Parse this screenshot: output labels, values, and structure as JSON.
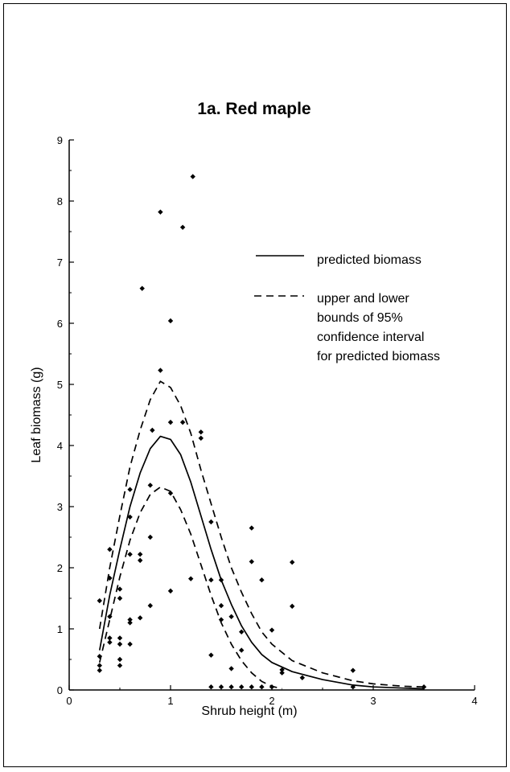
{
  "chart_data": {
    "type": "scatter",
    "title": "1a. Red maple",
    "xlabel": "Shrub height (m)",
    "ylabel": "Leaf biomass (g)",
    "xlim": [
      0,
      4
    ],
    "ylim": [
      0,
      9
    ],
    "x_ticks": [
      "0",
      "1",
      "2",
      "3",
      "4"
    ],
    "y_ticks": [
      "0",
      "1",
      "2",
      "3",
      "4",
      "5",
      "6",
      "7",
      "8",
      "9"
    ],
    "grid": false,
    "legend_position": "right",
    "legend": [
      {
        "label": "predicted biomass",
        "style": "solid"
      },
      {
        "label": "upper and lower bounds of 95% confidence interval for predicted biomass",
        "style": "dashed"
      }
    ],
    "legend_lines": [
      "upper and lower",
      "bounds of 95%",
      "confidence interval",
      "for predicted biomass"
    ],
    "points": [
      [
        0.3,
        0.32
      ],
      [
        0.3,
        0.4
      ],
      [
        0.3,
        0.55
      ],
      [
        0.3,
        1.46
      ],
      [
        0.4,
        0.78
      ],
      [
        0.4,
        0.85
      ],
      [
        0.4,
        1.2
      ],
      [
        0.4,
        1.83
      ],
      [
        0.4,
        2.3
      ],
      [
        0.5,
        0.4
      ],
      [
        0.5,
        0.5
      ],
      [
        0.5,
        0.75
      ],
      [
        0.5,
        0.85
      ],
      [
        0.5,
        1.5
      ],
      [
        0.5,
        1.65
      ],
      [
        0.6,
        0.75
      ],
      [
        0.6,
        1.1
      ],
      [
        0.6,
        1.15
      ],
      [
        0.6,
        2.22
      ],
      [
        0.6,
        2.83
      ],
      [
        0.6,
        3.28
      ],
      [
        0.7,
        1.18
      ],
      [
        0.7,
        2.12
      ],
      [
        0.7,
        2.22
      ],
      [
        0.72,
        6.57
      ],
      [
        0.8,
        1.38
      ],
      [
        0.8,
        2.5
      ],
      [
        0.8,
        3.35
      ],
      [
        0.82,
        4.25
      ],
      [
        0.9,
        5.23
      ],
      [
        0.9,
        7.82
      ],
      [
        1.0,
        1.62
      ],
      [
        1.0,
        3.22
      ],
      [
        1.0,
        4.38
      ],
      [
        1.0,
        6.04
      ],
      [
        1.12,
        4.38
      ],
      [
        1.12,
        7.57
      ],
      [
        1.2,
        1.82
      ],
      [
        1.22,
        8.4
      ],
      [
        1.3,
        4.12
      ],
      [
        1.3,
        4.22
      ],
      [
        1.4,
        0.05
      ],
      [
        1.4,
        0.57
      ],
      [
        1.4,
        1.8
      ],
      [
        1.4,
        2.75
      ],
      [
        1.5,
        0.05
      ],
      [
        1.5,
        1.15
      ],
      [
        1.5,
        1.38
      ],
      [
        1.5,
        1.8
      ],
      [
        1.6,
        0.05
      ],
      [
        1.6,
        0.35
      ],
      [
        1.6,
        1.2
      ],
      [
        1.7,
        0.05
      ],
      [
        1.7,
        0.65
      ],
      [
        1.7,
        0.95
      ],
      [
        1.8,
        0.05
      ],
      [
        1.8,
        2.1
      ],
      [
        1.8,
        2.65
      ],
      [
        1.9,
        0.05
      ],
      [
        1.9,
        1.8
      ],
      [
        2.0,
        0.05
      ],
      [
        2.0,
        0.98
      ],
      [
        2.1,
        0.28
      ],
      [
        2.1,
        0.33
      ],
      [
        2.2,
        1.37
      ],
      [
        2.2,
        2.09
      ],
      [
        2.3,
        0.2
      ],
      [
        2.8,
        0.05
      ],
      [
        2.8,
        0.32
      ],
      [
        3.5,
        0.05
      ]
    ],
    "series": [
      {
        "name": "predicted biomass",
        "style": "solid",
        "x": [
          0.3,
          0.4,
          0.5,
          0.6,
          0.7,
          0.8,
          0.9,
          1.0,
          1.1,
          1.2,
          1.3,
          1.4,
          1.5,
          1.6,
          1.7,
          1.8,
          1.9,
          2.0,
          2.2,
          2.5,
          2.8,
          3.0,
          3.3,
          3.5
        ],
        "y": [
          0.65,
          1.55,
          2.3,
          3.0,
          3.55,
          3.95,
          4.15,
          4.1,
          3.85,
          3.4,
          2.85,
          2.3,
          1.8,
          1.4,
          1.05,
          0.78,
          0.58,
          0.45,
          0.3,
          0.17,
          0.08,
          0.05,
          0.03,
          0.02
        ]
      },
      {
        "name": "upper bound",
        "style": "dashed",
        "x": [
          0.3,
          0.4,
          0.5,
          0.6,
          0.7,
          0.8,
          0.9,
          1.0,
          1.1,
          1.2,
          1.3,
          1.4,
          1.5,
          1.6,
          1.7,
          1.8,
          1.9,
          2.0,
          2.2,
          2.5,
          2.8,
          3.0,
          3.3,
          3.5
        ],
        "y": [
          1.0,
          2.0,
          2.85,
          3.65,
          4.25,
          4.75,
          5.05,
          4.95,
          4.65,
          4.2,
          3.6,
          3.05,
          2.5,
          2.0,
          1.6,
          1.25,
          0.95,
          0.75,
          0.48,
          0.28,
          0.15,
          0.1,
          0.06,
          0.05
        ]
      },
      {
        "name": "lower bound",
        "style": "dashed",
        "x": [
          0.3,
          0.4,
          0.5,
          0.6,
          0.7,
          0.8,
          0.9,
          1.0,
          1.1,
          1.2,
          1.3,
          1.4,
          1.5,
          1.6,
          1.7,
          1.8,
          1.9,
          2.0,
          2.1
        ],
        "y": [
          0.45,
          1.15,
          1.85,
          2.45,
          2.9,
          3.2,
          3.32,
          3.25,
          2.95,
          2.55,
          2.05,
          1.55,
          1.1,
          0.75,
          0.48,
          0.28,
          0.14,
          0.06,
          0.02
        ]
      }
    ]
  }
}
